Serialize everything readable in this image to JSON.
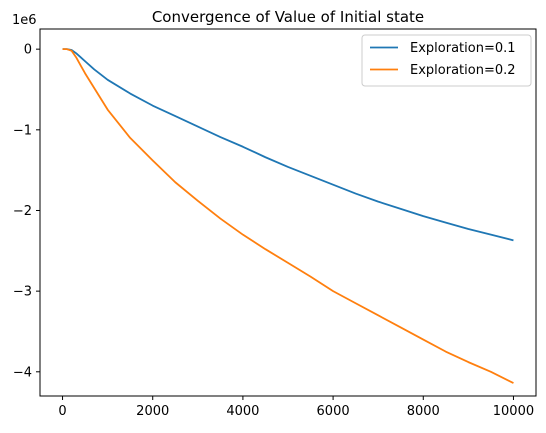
{
  "chart_data": {
    "type": "line",
    "title": "Convergence of Value of Initial state",
    "xlabel": "",
    "ylabel": "",
    "y_offset_label": "1e6",
    "xlim": [
      -500,
      10500
    ],
    "ylim": [
      -4.3,
      0.25
    ],
    "x_ticks": [
      0,
      2000,
      4000,
      6000,
      8000,
      10000
    ],
    "x_tick_labels": [
      "0",
      "2000",
      "4000",
      "6000",
      "8000",
      "10000"
    ],
    "y_ticks": [
      0,
      -1,
      -2,
      -3,
      -4
    ],
    "y_tick_labels": [
      "0",
      "−1",
      "−2",
      "−3",
      "−4"
    ],
    "grid": false,
    "legend_position": "top-right",
    "legend_labels": [
      "Exploration=0.1",
      "Exploration=0.2"
    ],
    "x": [
      0,
      100,
      200,
      300,
      400,
      500,
      700,
      1000,
      1500,
      2000,
      2500,
      3000,
      3500,
      4000,
      4500,
      5000,
      5500,
      6000,
      6500,
      7000,
      7500,
      8000,
      8500,
      9000,
      9500,
      10000
    ],
    "series": [
      {
        "name": "Exploration=0.1",
        "color": "#1f77b4",
        "values": [
          0,
          0,
          -0.01,
          -0.05,
          -0.1,
          -0.15,
          -0.25,
          -0.38,
          -0.55,
          -0.7,
          -0.83,
          -0.96,
          -1.09,
          -1.21,
          -1.34,
          -1.46,
          -1.57,
          -1.68,
          -1.79,
          -1.89,
          -1.98,
          -2.07,
          -2.15,
          -2.23,
          -2.3,
          -2.37
        ]
      },
      {
        "name": "Exploration=0.2",
        "color": "#ff7f0e",
        "values": [
          0,
          0,
          -0.02,
          -0.1,
          -0.2,
          -0.3,
          -0.48,
          -0.75,
          -1.1,
          -1.38,
          -1.65,
          -1.88,
          -2.1,
          -2.3,
          -2.48,
          -2.65,
          -2.82,
          -3.0,
          -3.15,
          -3.3,
          -3.45,
          -3.6,
          -3.75,
          -3.88,
          -4.0,
          -4.14
        ]
      }
    ]
  }
}
